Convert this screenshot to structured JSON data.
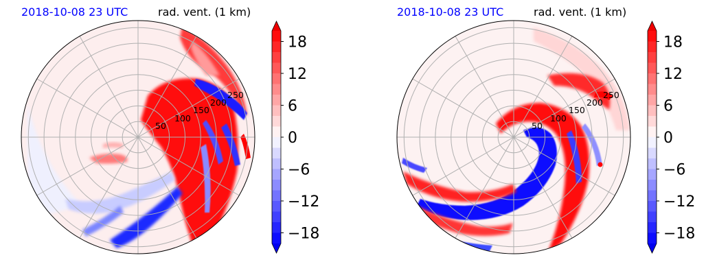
{
  "colors": {
    "positive": "#ff0000",
    "negative": "#0000ff",
    "neutral": "#ffffff",
    "grid": "#b0b0b0",
    "date_text": "#0000ff"
  },
  "chart_data": [
    {
      "type": "heatmap",
      "projection": "polar",
      "timestamp": "2018-10-08 23 UTC",
      "variable": "rad. vent. (1 km)",
      "radial_ticks": [
        "50",
        "100",
        "150",
        "200",
        "250"
      ],
      "radial_grid_count": 7,
      "angular_grid_deg": 30,
      "colorbar": {
        "range": [
          -20,
          20
        ],
        "levels": 20,
        "ticks": [
          "18",
          "12",
          "6",
          "0",
          "−6",
          "−12",
          "−18"
        ],
        "extend": "both",
        "cmap": "bwr"
      }
    },
    {
      "type": "heatmap",
      "projection": "polar",
      "timestamp": "2018-10-08 23 UTC",
      "variable": "rad. vent. (1 km)",
      "radial_ticks": [
        "50",
        "100",
        "150",
        "200",
        "250"
      ],
      "radial_grid_count": 7,
      "angular_grid_deg": 30,
      "colorbar": {
        "range": [
          -20,
          20
        ],
        "levels": 20,
        "ticks": [
          "18",
          "12",
          "6",
          "0",
          "−6",
          "−12",
          "−18"
        ],
        "extend": "both",
        "cmap": "bwr"
      }
    }
  ]
}
